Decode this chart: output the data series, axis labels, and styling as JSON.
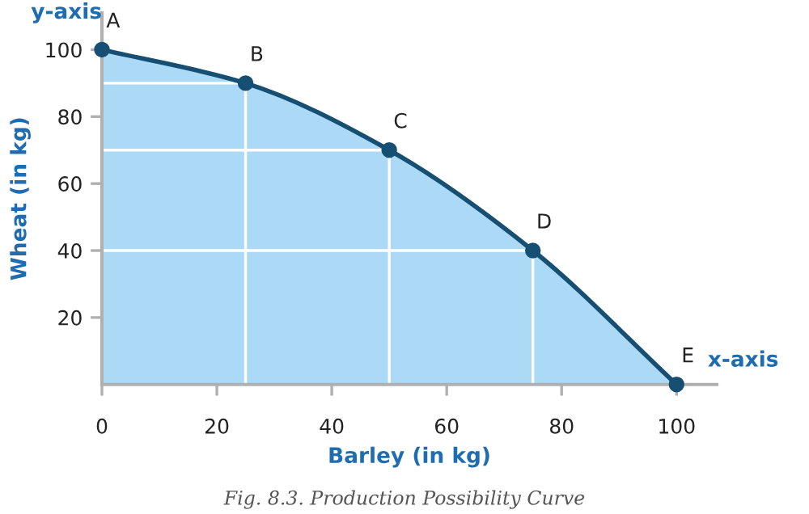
{
  "chart_data": {
    "type": "area",
    "xlabel": "Barley (in kg)",
    "ylabel": "Wheat (in kg)",
    "x": [
      0,
      25,
      50,
      75,
      100
    ],
    "series": [
      {
        "color": "#acdaf6",
        "values": [
          100,
          90,
          70,
          40,
          0
        ]
      }
    ],
    "marker": "circle",
    "line_style": "solid",
    "xlim": [
      0,
      107
    ],
    "ylim": [
      0,
      111
    ],
    "xticks": [
      {
        "value": 0,
        "label": "0"
      },
      20,
      40,
      60,
      80,
      100
    ],
    "yticks": [
      20,
      40,
      60,
      80,
      100
    ],
    "annotations": [
      {
        "text": "A",
        "x": 0,
        "y": 100
      },
      {
        "text": "B",
        "x": 25,
        "y": 90
      },
      {
        "text": "C",
        "x": 50,
        "y": 70
      },
      {
        "text": "D",
        "x": 75,
        "y": 40
      },
      {
        "text": "E",
        "x": 100,
        "y": 0
      },
      "y-axis",
      "x-axis",
      "Fig. 8.3. Production Possibility Curve"
    ]
  }
}
